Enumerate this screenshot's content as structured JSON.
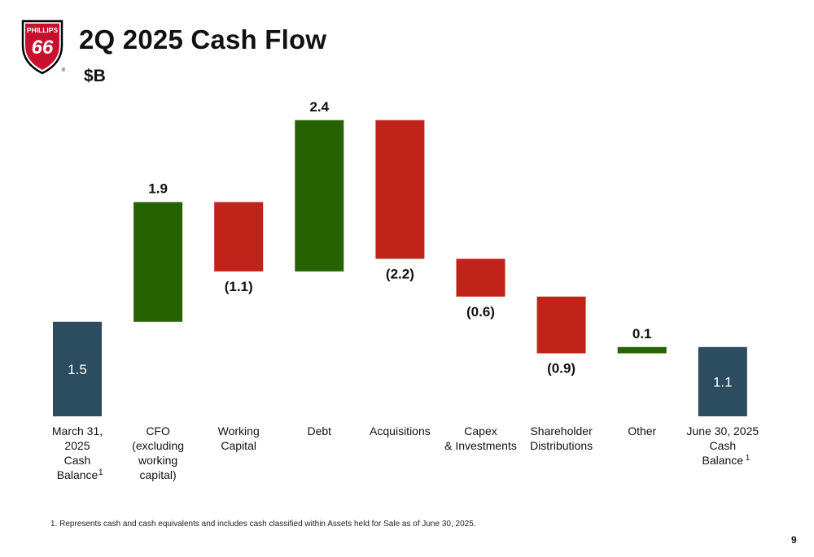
{
  "logo": {
    "line1": "PHILLIPS",
    "line2": "66",
    "mark": "®"
  },
  "header": {
    "title": "2Q 2025 Cash Flow",
    "unit": "$B"
  },
  "chart_data": {
    "type": "waterfall",
    "categories": [
      [
        "March 31,",
        "2025",
        "Cash",
        "Balance"
      ],
      [
        "CFO",
        "(excluding",
        "working",
        "capital)"
      ],
      [
        "Working",
        "Capital"
      ],
      [
        "Debt"
      ],
      [
        "Acquisitions"
      ],
      [
        "Capex",
        "& Investments"
      ],
      [
        "Shareholder",
        "Distributions"
      ],
      [
        "Other"
      ],
      [
        "June 30, 2025",
        "Cash",
        "Balance"
      ]
    ],
    "category_footnotes": [
      "1",
      "",
      "",
      "",
      "",
      "",
      "",
      "",
      "1"
    ],
    "values": [
      1.5,
      1.9,
      -1.1,
      2.4,
      -2.2,
      -0.6,
      -0.9,
      0.1,
      1.1
    ],
    "labels": [
      "1.5",
      "1.9",
      "(1.1)",
      "2.4",
      "(2.2)",
      "(0.6)",
      "(0.9)",
      "0.1",
      "1.1"
    ],
    "kinds": [
      "total",
      "delta",
      "delta",
      "delta",
      "delta",
      "delta",
      "delta",
      "delta",
      "total"
    ],
    "colors": {
      "total": "#2b4d5f",
      "positive": "#276200",
      "negative": "#c0231a"
    }
  },
  "footnote": "1. Represents cash and cash equivalents and includes cash classified within Assets held for Sale as of June 30, 2025.",
  "page_number": "9"
}
